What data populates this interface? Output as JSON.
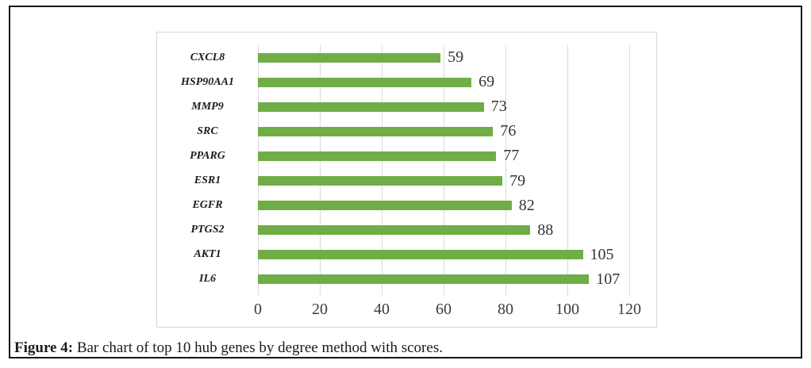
{
  "figure": {
    "caption": {
      "label": "Figure 4:",
      "text": "Bar chart of top 10 hub genes by degree method with scores."
    }
  },
  "chart_data": {
    "type": "bar",
    "orientation": "horizontal",
    "title": "",
    "categories": [
      "CXCL8",
      "HSP90AA1",
      "MMP9",
      "SRC",
      "PPARG",
      "ESR1",
      "EGFR",
      "PTGS2",
      "AKT1",
      "IL6"
    ],
    "values": [
      59,
      69,
      73,
      76,
      77,
      79,
      82,
      88,
      105,
      107
    ],
    "x_ticks": [
      0,
      20,
      40,
      60,
      80,
      100,
      120
    ],
    "xlim": [
      0,
      120
    ],
    "grid": true,
    "data_labels": true,
    "legend_position": "none",
    "colors": {
      "bar": "#70AD47",
      "gridline": "#D9D9D9",
      "chart_border": "#D6D6D6",
      "frame_border": "#161616",
      "value_label": "#343434",
      "tick_label": "#3C3C3C",
      "category_label": "#1D1D1D"
    }
  }
}
